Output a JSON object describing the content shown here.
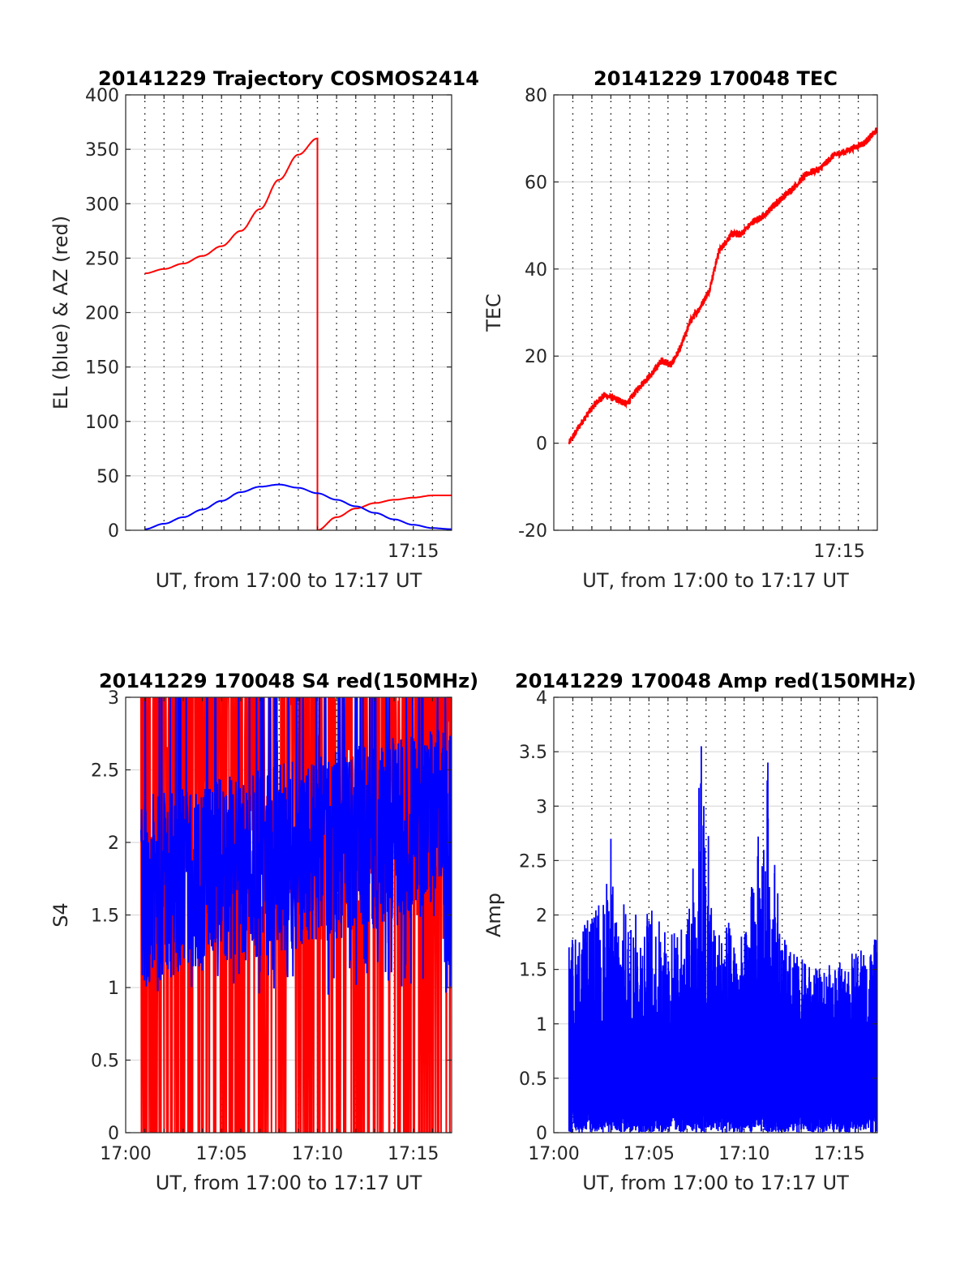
{
  "chart_data": [
    {
      "id": "trajectory",
      "type": "line",
      "title": "20141229 Trajectory COSMOS2414",
      "xlabel": "UT, from 17:00 to 17:17 UT",
      "ylabel": "EL (blue) & AZ (red)",
      "xlim": [
        "17:00",
        "17:17"
      ],
      "ylim": [
        0,
        400
      ],
      "yticks": [
        0,
        50,
        100,
        150,
        200,
        250,
        300,
        350,
        400
      ],
      "xticks": [
        {
          "t": "17:15",
          "label": "17:15"
        }
      ],
      "vgrid_times": [
        "17:01",
        "17:02",
        "17:03",
        "17:04",
        "17:05",
        "17:06",
        "17:07",
        "17:08",
        "17:09",
        "17:10",
        "17:11",
        "17:12",
        "17:13",
        "17:14",
        "17:15",
        "17:16"
      ],
      "grid": true,
      "series": [
        {
          "key": "az",
          "color": "#ff0000",
          "points": [
            [
              "17:01",
              236
            ],
            [
              "17:02",
              240
            ],
            [
              "17:03",
              245
            ],
            [
              "17:04",
              252
            ],
            [
              "17:05",
              261
            ],
            [
              "17:06",
              275
            ],
            [
              "17:07",
              295
            ],
            [
              "17:08",
              322
            ],
            [
              "17:09",
              345
            ],
            [
              "17:10",
              360
            ],
            [
              "17:10",
              0
            ],
            [
              "17:11",
              12
            ],
            [
              "17:12",
              20
            ],
            [
              "17:13",
              25
            ],
            [
              "17:14",
              28
            ],
            [
              "17:15",
              30
            ],
            [
              "17:16",
              32
            ],
            [
              "17:17",
              32
            ]
          ]
        },
        {
          "key": "el",
          "color": "#0000ff",
          "points": [
            [
              "17:01",
              1
            ],
            [
              "17:02",
              6
            ],
            [
              "17:03",
              12
            ],
            [
              "17:04",
              19
            ],
            [
              "17:05",
              27
            ],
            [
              "17:06",
              35
            ],
            [
              "17:07",
              40
            ],
            [
              "17:08",
              42
            ],
            [
              "17:09",
              39
            ],
            [
              "17:10",
              34
            ],
            [
              "17:11",
              28
            ],
            [
              "17:12",
              22
            ],
            [
              "17:13",
              16
            ],
            [
              "17:14",
              10
            ],
            [
              "17:15",
              5
            ],
            [
              "17:16",
              2
            ],
            [
              "17:17",
              1
            ]
          ]
        }
      ]
    },
    {
      "id": "tec",
      "type": "line",
      "title": "20141229 170048 TEC",
      "xlabel": "UT, from 17:00 to 17:17 UT",
      "ylabel": "TEC",
      "xlim": [
        "17:00",
        "17:17"
      ],
      "ylim": [
        -20,
        80
      ],
      "yticks": [
        -20,
        0,
        20,
        40,
        60,
        80
      ],
      "xticks": [
        {
          "t": "17:15",
          "label": "17:15"
        }
      ],
      "vgrid_times": [
        "17:01",
        "17:02",
        "17:03",
        "17:04",
        "17:05",
        "17:06",
        "17:07",
        "17:08",
        "17:09",
        "17:10",
        "17:11",
        "17:12",
        "17:13",
        "17:14",
        "17:15",
        "17:16"
      ],
      "grid": true,
      "series": [
        {
          "key": "tec",
          "color": "#ff0000",
          "noise": 0.8,
          "points": [
            [
              "17:00:48",
              0
            ],
            [
              "17:01:30",
              5
            ],
            [
              "17:02:10",
              9
            ],
            [
              "17:02:40",
              11
            ],
            [
              "17:03:20",
              10
            ],
            [
              "17:03:50",
              9
            ],
            [
              "17:04:30",
              13
            ],
            [
              "17:05:10",
              16
            ],
            [
              "17:05:40",
              19
            ],
            [
              "17:06:10",
              18
            ],
            [
              "17:06:40",
              22
            ],
            [
              "17:07:10",
              28
            ],
            [
              "17:07:40",
              31
            ],
            [
              "17:08:10",
              35
            ],
            [
              "17:08:40",
              44
            ],
            [
              "17:09:20",
              48
            ],
            [
              "17:09:50",
              48
            ],
            [
              "17:10:30",
              51
            ],
            [
              "17:11:00",
              52
            ],
            [
              "17:11:40",
              55
            ],
            [
              "17:12:10",
              57
            ],
            [
              "17:12:40",
              59
            ],
            [
              "17:13:20",
              62
            ],
            [
              "17:14:00",
              63
            ],
            [
              "17:14:40",
              66
            ],
            [
              "17:15:20",
              67
            ],
            [
              "17:16:20",
              69
            ],
            [
              "17:17:00",
              72
            ]
          ]
        }
      ]
    },
    {
      "id": "s4",
      "type": "line",
      "title": "20141229 170048 S4 red(150MHz)",
      "xlabel": "UT, from 17:00 to 17:17 UT",
      "ylabel": "S4",
      "xlim": [
        "17:00",
        "17:17"
      ],
      "ylim": [
        0,
        3
      ],
      "yticks": [
        0,
        0.5,
        1,
        1.5,
        2,
        2.5,
        3
      ],
      "xticks": [
        {
          "t": "17:00",
          "label": "17:00"
        },
        {
          "t": "17:05",
          "label": "17:05"
        },
        {
          "t": "17:10",
          "label": "17:10"
        },
        {
          "t": "17:15",
          "label": "17:15"
        }
      ],
      "vgrid_times": [
        "17:01",
        "17:02",
        "17:03",
        "17:04",
        "17:05",
        "17:06",
        "17:07",
        "17:08",
        "17:09",
        "17:10",
        "17:11",
        "17:12",
        "17:13",
        "17:14",
        "17:15",
        "17:16"
      ],
      "grid": true,
      "series": [
        {
          "key": "s4_red",
          "color": "#ff0000",
          "start": "17:00:48",
          "end": "17:17:00",
          "range": [
            0,
            3
          ],
          "typical": 2.2
        },
        {
          "key": "s4_blue",
          "color": "#0000ff",
          "start": "17:00:48",
          "end": "17:17:00",
          "range": [
            0.8,
            3
          ],
          "typical": 1.75
        }
      ]
    },
    {
      "id": "amp",
      "type": "line",
      "title": "20141229 170048 Amp red(150MHz)",
      "xlabel": "UT, from 17:00 to 17:17 UT",
      "ylabel": "Amp",
      "xlim": [
        "17:00",
        "17:17"
      ],
      "ylim": [
        0,
        4
      ],
      "yticks": [
        0,
        0.5,
        1,
        1.5,
        2,
        2.5,
        3,
        3.5,
        4
      ],
      "xticks": [
        {
          "t": "17:00",
          "label": "17:00"
        },
        {
          "t": "17:05",
          "label": "17:05"
        },
        {
          "t": "17:10",
          "label": "17:10"
        },
        {
          "t": "17:15",
          "label": "17:15"
        }
      ],
      "vgrid_times": [
        "17:01",
        "17:02",
        "17:03",
        "17:04",
        "17:05",
        "17:06",
        "17:07",
        "17:08",
        "17:09",
        "17:10",
        "17:11",
        "17:12",
        "17:13",
        "17:14",
        "17:15",
        "17:16"
      ],
      "grid": true,
      "series": [
        {
          "key": "amp",
          "color": "#0000ff",
          "start": "17:00:48",
          "end": "17:17:00",
          "range": [
            0,
            3.55
          ],
          "envelope": [
            [
              "17:00:48",
              1.8
            ],
            [
              "17:02:00",
              2.0
            ],
            [
              "17:03:00",
              2.4
            ],
            [
              "17:04:00",
              2.0
            ],
            [
              "17:05:00",
              2.1
            ],
            [
              "17:06:00",
              1.9
            ],
            [
              "17:07:00",
              1.9
            ],
            [
              "17:07:45",
              3.55
            ],
            [
              "17:08:30",
              1.9
            ],
            [
              "17:09:00",
              2.0
            ],
            [
              "17:10:00",
              1.8
            ],
            [
              "17:11:15",
              3.4
            ],
            [
              "17:12:00",
              1.8
            ],
            [
              "17:13:00",
              1.6
            ],
            [
              "17:14:00",
              1.5
            ],
            [
              "17:15:00",
              1.6
            ],
            [
              "17:16:00",
              1.7
            ],
            [
              "17:17:00",
              1.8
            ]
          ]
        }
      ]
    }
  ]
}
